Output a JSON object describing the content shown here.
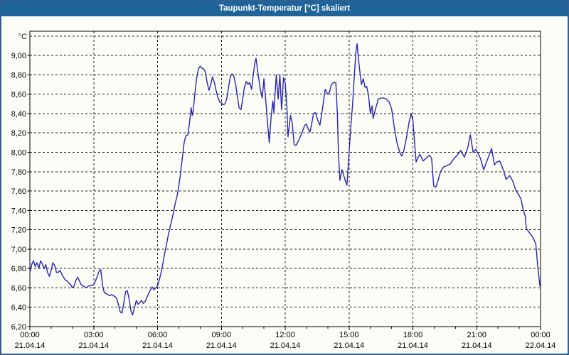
{
  "window": {
    "title": "Taupunkt-Temperatur [°C] skaliert",
    "titlebar_color": "#1e6498",
    "border_color": "#2f6094",
    "background_color": "#fdfdf8"
  },
  "chart_data": {
    "type": "line",
    "title": "Taupunkt-Temperatur [°C] skaliert",
    "line_color": "#2424b4",
    "grid_color": "#1a1a1a",
    "grid_style": "dashed",
    "plot_background": "#fdfdf8",
    "ylabel": "",
    "xlabel": "",
    "y_axis": {
      "unit": "°C",
      "ylim": [
        6.2,
        9.25
      ],
      "grid_min": 6.4,
      "grid_max": 9.2,
      "step": 0.2,
      "ticks": [
        {
          "v": 9.0,
          "label": "9,00"
        },
        {
          "v": 8.8,
          "label": "8,80"
        },
        {
          "v": 8.6,
          "label": "8,60"
        },
        {
          "v": 8.4,
          "label": "8,40"
        },
        {
          "v": 8.2,
          "label": "8,20"
        },
        {
          "v": 8.0,
          "label": "8,00"
        },
        {
          "v": 7.8,
          "label": "7,80"
        },
        {
          "v": 7.6,
          "label": "7,60"
        },
        {
          "v": 7.4,
          "label": "7,40"
        },
        {
          "v": 7.2,
          "label": "7,20"
        },
        {
          "v": 7.0,
          "label": "7,00"
        },
        {
          "v": 6.8,
          "label": "6,80"
        },
        {
          "v": 6.6,
          "label": "6,60"
        },
        {
          "v": 6.4,
          "label": "6,40"
        },
        {
          "v": 6.2,
          "label": "6,20"
        }
      ]
    },
    "x_axis": {
      "range_hours": [
        0,
        24
      ],
      "minor_step_hours": 1,
      "major_step_hours": 3,
      "ticks": [
        {
          "h": 0,
          "time": "00:00",
          "date": "21.04.14"
        },
        {
          "h": 3,
          "time": "03:00",
          "date": "21.04.14"
        },
        {
          "h": 6,
          "time": "06:00",
          "date": "21.04.14"
        },
        {
          "h": 9,
          "time": "09:00",
          "date": "21.04.14"
        },
        {
          "h": 12,
          "time": "12:00",
          "date": "21.04.14"
        },
        {
          "h": 15,
          "time": "15:00",
          "date": "21.04.14"
        },
        {
          "h": 18,
          "time": "18:00",
          "date": "21.04.14"
        },
        {
          "h": 21,
          "time": "21:00",
          "date": "21.04.14"
        },
        {
          "h": 24,
          "time": "00:00",
          "date": "22.04.14"
        }
      ]
    },
    "series": [
      {
        "name": "Taupunkt-Temperatur",
        "points": [
          [
            0,
            6.76
          ],
          [
            0.1,
            6.85
          ],
          [
            0.17,
            6.88
          ],
          [
            0.25,
            6.82
          ],
          [
            0.33,
            6.86
          ],
          [
            0.42,
            6.8
          ],
          [
            0.5,
            6.88
          ],
          [
            0.58,
            6.85
          ],
          [
            0.67,
            6.8
          ],
          [
            0.75,
            6.84
          ],
          [
            0.83,
            6.76
          ],
          [
            0.92,
            6.72
          ],
          [
            1,
            6.78
          ],
          [
            1.08,
            6.86
          ],
          [
            1.17,
            6.83
          ],
          [
            1.25,
            6.76
          ],
          [
            1.33,
            6.76
          ],
          [
            1.42,
            6.78
          ],
          [
            1.5,
            6.74
          ],
          [
            1.58,
            6.71
          ],
          [
            1.67,
            6.68
          ],
          [
            1.75,
            6.67
          ],
          [
            1.83,
            6.65
          ],
          [
            1.92,
            6.63
          ],
          [
            2,
            6.6
          ],
          [
            2.08,
            6.62
          ],
          [
            2.17,
            6.68
          ],
          [
            2.25,
            6.71
          ],
          [
            2.33,
            6.67
          ],
          [
            2.42,
            6.63
          ],
          [
            2.5,
            6.62
          ],
          [
            2.58,
            6.61
          ],
          [
            2.67,
            6.6
          ],
          [
            2.75,
            6.62
          ],
          [
            2.83,
            6.62
          ],
          [
            2.92,
            6.63
          ],
          [
            3,
            6.63
          ],
          [
            3.08,
            6.67
          ],
          [
            3.17,
            6.72
          ],
          [
            3.25,
            6.77
          ],
          [
            3.33,
            6.79
          ],
          [
            3.42,
            6.62
          ],
          [
            3.5,
            6.55
          ],
          [
            3.58,
            6.54
          ],
          [
            3.67,
            6.53
          ],
          [
            3.75,
            6.52
          ],
          [
            3.83,
            6.53
          ],
          [
            3.92,
            6.52
          ],
          [
            4,
            6.51
          ],
          [
            4.08,
            6.49
          ],
          [
            4.17,
            6.42
          ],
          [
            4.25,
            6.35
          ],
          [
            4.33,
            6.34
          ],
          [
            4.42,
            6.45
          ],
          [
            4.5,
            6.56
          ],
          [
            4.58,
            6.57
          ],
          [
            4.67,
            6.48
          ],
          [
            4.75,
            6.36
          ],
          [
            4.83,
            6.32
          ],
          [
            4.92,
            6.4
          ],
          [
            5,
            6.47
          ],
          [
            5.08,
            6.43
          ],
          [
            5.17,
            6.45
          ],
          [
            5.25,
            6.47
          ],
          [
            5.33,
            6.44
          ],
          [
            5.42,
            6.46
          ],
          [
            5.5,
            6.5
          ],
          [
            5.58,
            6.54
          ],
          [
            5.67,
            6.58
          ],
          [
            5.75,
            6.61
          ],
          [
            5.83,
            6.58
          ],
          [
            5.92,
            6.6
          ],
          [
            6,
            6.62
          ],
          [
            6.08,
            6.68
          ],
          [
            6.17,
            6.76
          ],
          [
            6.25,
            6.85
          ],
          [
            6.33,
            6.95
          ],
          [
            6.42,
            7.05
          ],
          [
            6.5,
            7.14
          ],
          [
            6.58,
            7.22
          ],
          [
            6.67,
            7.3
          ],
          [
            6.75,
            7.38
          ],
          [
            6.83,
            7.47
          ],
          [
            6.92,
            7.55
          ],
          [
            7,
            7.65
          ],
          [
            7.08,
            7.78
          ],
          [
            7.17,
            7.95
          ],
          [
            7.25,
            8.1
          ],
          [
            7.33,
            8.17
          ],
          [
            7.42,
            8.18
          ],
          [
            7.5,
            8.3
          ],
          [
            7.58,
            8.46
          ],
          [
            7.63,
            8.38
          ],
          [
            7.67,
            8.42
          ],
          [
            7.75,
            8.6
          ],
          [
            7.83,
            8.75
          ],
          [
            7.92,
            8.86
          ],
          [
            8,
            8.89
          ],
          [
            8.08,
            8.87
          ],
          [
            8.17,
            8.86
          ],
          [
            8.25,
            8.83
          ],
          [
            8.33,
            8.72
          ],
          [
            8.42,
            8.64
          ],
          [
            8.5,
            8.7
          ],
          [
            8.58,
            8.78
          ],
          [
            8.67,
            8.72
          ],
          [
            8.75,
            8.64
          ],
          [
            8.83,
            8.57
          ],
          [
            8.92,
            8.52
          ],
          [
            9,
            8.51
          ],
          [
            9.08,
            8.49
          ],
          [
            9.17,
            8.5
          ],
          [
            9.25,
            8.55
          ],
          [
            9.33,
            8.66
          ],
          [
            9.42,
            8.78
          ],
          [
            9.5,
            8.81
          ],
          [
            9.58,
            8.79
          ],
          [
            9.67,
            8.7
          ],
          [
            9.75,
            8.58
          ],
          [
            9.83,
            8.46
          ],
          [
            9.92,
            8.44
          ],
          [
            10,
            8.55
          ],
          [
            10.08,
            8.67
          ],
          [
            10.17,
            8.73
          ],
          [
            10.25,
            8.7
          ],
          [
            10.33,
            8.72
          ],
          [
            10.42,
            8.65
          ],
          [
            10.5,
            8.8
          ],
          [
            10.58,
            8.93
          ],
          [
            10.63,
            8.97
          ],
          [
            10.7,
            8.85
          ],
          [
            10.75,
            8.77
          ],
          [
            10.83,
            8.65
          ],
          [
            10.92,
            8.56
          ],
          [
            11,
            8.76
          ],
          [
            11.08,
            8.55
          ],
          [
            11.17,
            8.3
          ],
          [
            11.25,
            8.1
          ],
          [
            11.33,
            8.35
          ],
          [
            11.42,
            8.53
          ],
          [
            11.47,
            8.41
          ],
          [
            11.58,
            8.8
          ],
          [
            11.67,
            8.55
          ],
          [
            11.75,
            8.8
          ],
          [
            11.83,
            8.44
          ],
          [
            11.92,
            8.77
          ],
          [
            12,
            8.72
          ],
          [
            12.08,
            8.46
          ],
          [
            12.13,
            8.16
          ],
          [
            12.25,
            8.38
          ],
          [
            12.33,
            8.3
          ],
          [
            12.42,
            8.08
          ],
          [
            12.5,
            8.07
          ],
          [
            12.63,
            8.12
          ],
          [
            12.75,
            8.18
          ],
          [
            12.92,
            8.28
          ],
          [
            13,
            8.29
          ],
          [
            13.08,
            8.24
          ],
          [
            13.17,
            8.21
          ],
          [
            13.25,
            8.3
          ],
          [
            13.33,
            8.4
          ],
          [
            13.42,
            8.41
          ],
          [
            13.53,
            8.33
          ],
          [
            13.63,
            8.28
          ],
          [
            13.75,
            8.45
          ],
          [
            13.88,
            8.65
          ],
          [
            14,
            8.6
          ],
          [
            14.08,
            8.62
          ],
          [
            14.17,
            8.7
          ],
          [
            14.27,
            8.72
          ],
          [
            14.38,
            8.72
          ],
          [
            14.45,
            8.4
          ],
          [
            14.5,
            8
          ],
          [
            14.57,
            7.71
          ],
          [
            14.67,
            7.82
          ],
          [
            14.75,
            7.76
          ],
          [
            14.83,
            7.7
          ],
          [
            14.9,
            7.66
          ],
          [
            15,
            8
          ],
          [
            15.08,
            8.25
          ],
          [
            15.17,
            8.5
          ],
          [
            15.25,
            8.8
          ],
          [
            15.33,
            9.05
          ],
          [
            15.38,
            9.12
          ],
          [
            15.45,
            8.95
          ],
          [
            15.5,
            8.85
          ],
          [
            15.58,
            8.7
          ],
          [
            15.67,
            8.76
          ],
          [
            15.75,
            8.67
          ],
          [
            15.83,
            8.68
          ],
          [
            15.92,
            8.58
          ],
          [
            16,
            8.4
          ],
          [
            16.08,
            8.48
          ],
          [
            16.13,
            8.35
          ],
          [
            16.25,
            8.45
          ],
          [
            16.38,
            8.55
          ],
          [
            16.5,
            8.56
          ],
          [
            16.63,
            8.56
          ],
          [
            16.75,
            8.55
          ],
          [
            16.88,
            8.52
          ],
          [
            17,
            8.45
          ],
          [
            17.13,
            8.25
          ],
          [
            17.25,
            8.1
          ],
          [
            17.38,
            8
          ],
          [
            17.48,
            7.96
          ],
          [
            17.58,
            8.02
          ],
          [
            17.7,
            8.15
          ],
          [
            17.83,
            8.32
          ],
          [
            17.92,
            8.4
          ],
          [
            18,
            8.33
          ],
          [
            18.08,
            8.1
          ],
          [
            18.15,
            7.9
          ],
          [
            18.25,
            7.95
          ],
          [
            18.33,
            7.98
          ],
          [
            18.48,
            7.91
          ],
          [
            18.63,
            7.94
          ],
          [
            18.78,
            7.97
          ],
          [
            18.88,
            7.94
          ],
          [
            18.98,
            7.65
          ],
          [
            19.08,
            7.64
          ],
          [
            19.17,
            7.7
          ],
          [
            19.3,
            7.8
          ],
          [
            19.45,
            7.85
          ],
          [
            19.58,
            7.86
          ],
          [
            19.75,
            7.88
          ],
          [
            19.92,
            7.93
          ],
          [
            20.08,
            7.97
          ],
          [
            20.25,
            8.02
          ],
          [
            20.42,
            7.95
          ],
          [
            20.58,
            8.05
          ],
          [
            20.7,
            8.18
          ],
          [
            20.83,
            8
          ],
          [
            20.95,
            8.03
          ],
          [
            21.08,
            7.98
          ],
          [
            21.17,
            7.94
          ],
          [
            21.33,
            7.82
          ],
          [
            21.5,
            7.92
          ],
          [
            21.7,
            8.04
          ],
          [
            21.83,
            7.87
          ],
          [
            21.95,
            7.9
          ],
          [
            22.08,
            7.91
          ],
          [
            22.25,
            7.82
          ],
          [
            22.38,
            7.72
          ],
          [
            22.55,
            7.76
          ],
          [
            22.7,
            7.7
          ],
          [
            22.83,
            7.61
          ],
          [
            22.95,
            7.57
          ],
          [
            23.08,
            7.52
          ],
          [
            23.17,
            7.42
          ],
          [
            23.28,
            7.34
          ],
          [
            23.33,
            7.21
          ],
          [
            23.45,
            7.18
          ],
          [
            23.58,
            7.14
          ],
          [
            23.67,
            7.11
          ],
          [
            23.78,
            7.05
          ],
          [
            23.83,
            6.92
          ],
          [
            23.88,
            6.8
          ],
          [
            23.97,
            6.62
          ]
        ]
      }
    ]
  }
}
